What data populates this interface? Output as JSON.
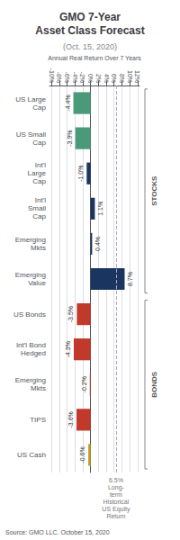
{
  "chart_data": {
    "type": "bar",
    "orientation": "horizontal",
    "title": "GMO 7-Year\nAsset Class Forecast",
    "subtitle": "(Oct. 15, 2020)",
    "xlabel": "Annual Real Return Over 7 Years",
    "source": "Source: GMO LLC. October 15, 2020",
    "categories": [
      "US Large\nCap",
      "US Small\nCap",
      "Int'l\nLarge\nCap",
      "Int'l\nSmall\nCap",
      "Emerging\nMkts",
      "Emerging\nValue",
      "US Bonds",
      "Int'l Bond\nHedged",
      "Emerging\nMkts",
      "TIPS",
      "US Cash"
    ],
    "values": [
      -4.4,
      -3.9,
      -1.0,
      1.1,
      0.4,
      8.7,
      -3.5,
      -4.3,
      -0.2,
      -3.6,
      -0.6
    ],
    "value_labels": [
      "-4.4%",
      "-3.9%",
      "-1.0%",
      "1.1%",
      "0.4%",
      "8.7%",
      "-3.5%",
      "-4.3%",
      "-0.2%",
      "-3.6%",
      "-0.6%"
    ],
    "data_labels": true,
    "colors": [
      "#4a9a7a",
      "#4a9a7a",
      "#1a3560",
      "#1a3560",
      "#1a3560",
      "#1a3560",
      "#c0392b",
      "#c0392b",
      "#c0392b",
      "#c0392b",
      "#c8a020"
    ],
    "xlim": [
      -10.5,
      12.5
    ],
    "xticks": [
      {
        "value": -10,
        "label": "-10%"
      },
      {
        "value": -8,
        "label": "-8%"
      },
      {
        "value": -6,
        "label": "-6%"
      },
      {
        "value": -4,
        "label": "-4%"
      },
      {
        "value": -2,
        "label": "-2%"
      },
      {
        "value": 0,
        "label": "0%"
      },
      {
        "value": 2,
        "label": "2%"
      },
      {
        "value": 4,
        "label": "4%"
      },
      {
        "value": 6,
        "label": "6%"
      },
      {
        "value": 8,
        "label": "8%"
      },
      {
        "value": 10,
        "label": "10%"
      },
      {
        "value": 12,
        "label": "12%"
      }
    ],
    "grid": true,
    "annotations": [
      {
        "text": "6.5%\nLong-\nterm\nHistorical\nUS Equity\nReturn",
        "x": 6.5,
        "line_style": "dashed"
      }
    ],
    "groups": [
      {
        "label": "STOCKS",
        "size": 6
      },
      {
        "label": "BONDS",
        "size": 5
      }
    ]
  }
}
